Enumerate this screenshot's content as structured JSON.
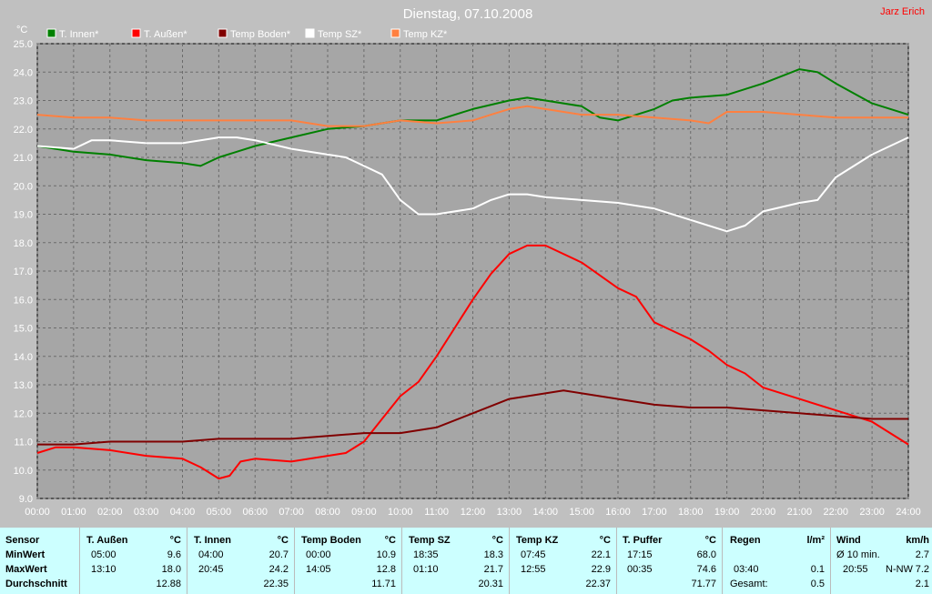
{
  "chart_data": {
    "type": "line",
    "title": "Dienstag, 07.10.2008",
    "author": "Jarz Erich",
    "ylabel": "°C",
    "ylim": [
      9.0,
      25.0
    ],
    "yticks": [
      "25.0",
      "24.0",
      "23.0",
      "22.0",
      "21.0",
      "20.0",
      "19.0",
      "18.0",
      "17.0",
      "16.0",
      "15.0",
      "14.0",
      "13.0",
      "12.0",
      "11.0",
      "10.0",
      "9.0"
    ],
    "xlim": [
      0,
      24
    ],
    "xticks": [
      "00:00",
      "01:00",
      "02:00",
      "03:00",
      "04:00",
      "05:00",
      "06:00",
      "07:00",
      "08:00",
      "09:00",
      "10:00",
      "11:00",
      "12:00",
      "13:00",
      "14:00",
      "15:00",
      "16:00",
      "17:00",
      "18:00",
      "19:00",
      "20:00",
      "21:00",
      "22:00",
      "23:00",
      "24:00"
    ],
    "grid": true,
    "series": [
      {
        "name": "T. Innen*",
        "color": "#008000",
        "x": [
          0,
          0.5,
          1,
          2,
          3,
          4,
          4.5,
          5,
          6,
          7,
          8,
          9,
          10,
          10.5,
          11,
          12,
          13,
          13.5,
          14,
          15,
          15.5,
          16,
          17,
          17.5,
          18,
          19,
          20,
          21,
          21.5,
          22,
          23,
          24
        ],
        "y": [
          21.4,
          21.3,
          21.2,
          21.1,
          20.9,
          20.8,
          20.7,
          21.0,
          21.4,
          21.7,
          22.0,
          22.1,
          22.3,
          22.3,
          22.3,
          22.7,
          23.0,
          23.1,
          23.0,
          22.8,
          22.4,
          22.3,
          22.7,
          23.0,
          23.1,
          23.2,
          23.6,
          24.1,
          24.0,
          23.6,
          22.9,
          22.5
        ]
      },
      {
        "name": "T. Außen*",
        "color": "#ff0000",
        "x": [
          0,
          0.5,
          1,
          2,
          3,
          4,
          4.5,
          5,
          5.3,
          5.6,
          6,
          7,
          8,
          8.5,
          9,
          9.5,
          10,
          10.5,
          11,
          11.5,
          12,
          12.5,
          13,
          13.5,
          14,
          15,
          16,
          16.5,
          17,
          17.5,
          18,
          18.5,
          19,
          19.5,
          20,
          21,
          22,
          23,
          24
        ],
        "y": [
          10.6,
          10.8,
          10.8,
          10.7,
          10.5,
          10.4,
          10.1,
          9.7,
          9.8,
          10.3,
          10.4,
          10.3,
          10.5,
          10.6,
          11.0,
          11.8,
          12.6,
          13.1,
          14.0,
          15.0,
          16.0,
          16.9,
          17.6,
          17.9,
          17.9,
          17.3,
          16.4,
          16.1,
          15.2,
          14.9,
          14.6,
          14.2,
          13.7,
          13.4,
          12.9,
          12.5,
          12.1,
          11.7,
          10.9
        ]
      },
      {
        "name": "Temp Boden*",
        "color": "#800000",
        "x": [
          0,
          1,
          2,
          3,
          4,
          5,
          6,
          7,
          8,
          9,
          10,
          11,
          12,
          13,
          14,
          14.5,
          15,
          16,
          17,
          18,
          19,
          20,
          21,
          22,
          23,
          24
        ],
        "y": [
          10.9,
          10.9,
          11.0,
          11.0,
          11.0,
          11.1,
          11.1,
          11.1,
          11.2,
          11.3,
          11.3,
          11.5,
          12.0,
          12.5,
          12.7,
          12.8,
          12.7,
          12.5,
          12.3,
          12.2,
          12.2,
          12.1,
          12.0,
          11.9,
          11.8,
          11.8
        ]
      },
      {
        "name": "Temp SZ*",
        "color": "#ffffff",
        "x": [
          0,
          1,
          1.5,
          2,
          3,
          4,
          5,
          5.5,
          6,
          7,
          8,
          8.5,
          9,
          9.5,
          10,
          10.5,
          11,
          12,
          12.5,
          13,
          13.5,
          14,
          15,
          16,
          17,
          18,
          19,
          19.5,
          20,
          21,
          21.5,
          22,
          23,
          24
        ],
        "y": [
          21.4,
          21.3,
          21.6,
          21.6,
          21.5,
          21.5,
          21.7,
          21.7,
          21.6,
          21.3,
          21.1,
          21.0,
          20.7,
          20.4,
          19.5,
          19.0,
          19.0,
          19.2,
          19.5,
          19.7,
          19.7,
          19.6,
          19.5,
          19.4,
          19.2,
          18.8,
          18.4,
          18.6,
          19.1,
          19.4,
          19.5,
          20.3,
          21.1,
          21.7
        ]
      },
      {
        "name": "Temp KZ*",
        "color": "#ff8040",
        "x": [
          0,
          1,
          2,
          3,
          4,
          5,
          6,
          7,
          8,
          9,
          10,
          11,
          12,
          12.5,
          13,
          13.5,
          14,
          15,
          16,
          17,
          18,
          18.5,
          19,
          20,
          21,
          22,
          23,
          24
        ],
        "y": [
          22.5,
          22.4,
          22.4,
          22.3,
          22.3,
          22.3,
          22.3,
          22.3,
          22.1,
          22.1,
          22.3,
          22.2,
          22.3,
          22.5,
          22.7,
          22.8,
          22.7,
          22.5,
          22.5,
          22.4,
          22.3,
          22.2,
          22.6,
          22.6,
          22.5,
          22.4,
          22.4,
          22.4
        ]
      }
    ]
  },
  "stats": {
    "row_labels": [
      "Sensor",
      "MinWert",
      "MaxWert",
      "Durchschnitt"
    ],
    "columns": [
      {
        "name": "T. Außen",
        "unit": "°C",
        "min_time": "05:00",
        "min_val": "9.6",
        "max_time": "13:10",
        "max_val": "18.0",
        "avg": "12.88"
      },
      {
        "name": "T. Innen",
        "unit": "°C",
        "min_time": "04:00",
        "min_val": "20.7",
        "max_time": "20:45",
        "max_val": "24.2",
        "avg": "22.35"
      },
      {
        "name": "Temp Boden",
        "unit": "°C",
        "min_time": "00:00",
        "min_val": "10.9",
        "max_time": "14:05",
        "max_val": "12.8",
        "avg": "11.71"
      },
      {
        "name": "Temp SZ",
        "unit": "°C",
        "min_time": "18:35",
        "min_val": "18.3",
        "max_time": "01:10",
        "max_val": "21.7",
        "avg": "20.31"
      },
      {
        "name": "Temp KZ",
        "unit": "°C",
        "min_time": "07:45",
        "min_val": "22.1",
        "max_time": "12:55",
        "max_val": "22.9",
        "avg": "22.37"
      },
      {
        "name": "T. Puffer",
        "unit": "°C",
        "min_time": "17:15",
        "min_val": "68.0",
        "max_time": "00:35",
        "max_val": "74.6",
        "avg": "71.77"
      }
    ],
    "regen": {
      "name": "Regen",
      "unit": "l/m²",
      "max_time": "03:40",
      "max_val": "0.1",
      "total_label": "Gesamt:",
      "total": "0.5"
    },
    "wind": {
      "name": "Wind",
      "unit": "km/h",
      "avg_label": "Ø 10 min.",
      "avg_val": "2.7",
      "max_time": "20:55",
      "max_dir": "N-NW",
      "max_val": "7.2",
      "avg": "2.1"
    }
  }
}
